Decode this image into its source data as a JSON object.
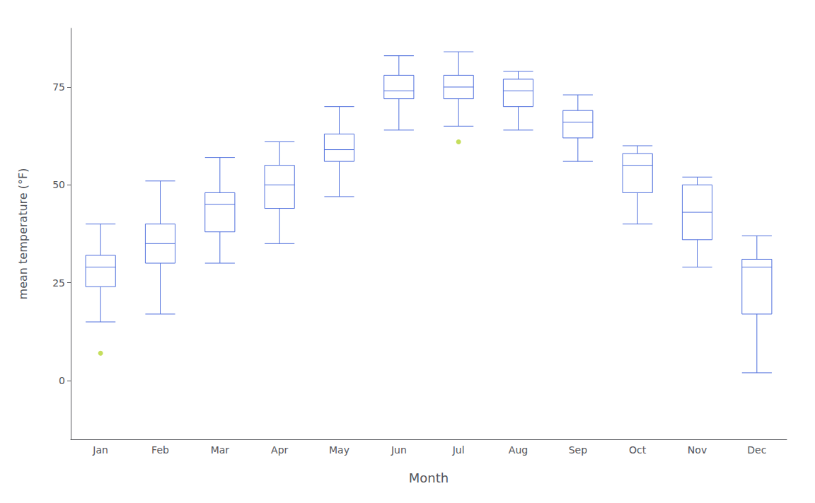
{
  "chart_data": {
    "type": "box",
    "xlabel": "Month",
    "ylabel": "mean temperature (°F)",
    "categories": [
      "Jan",
      "Feb",
      "Mar",
      "Apr",
      "May",
      "Jun",
      "Jul",
      "Aug",
      "Sep",
      "Oct",
      "Nov",
      "Dec"
    ],
    "values": [
      [
        15,
        24,
        29,
        32,
        40
      ],
      [
        17,
        30,
        35,
        40,
        51
      ],
      [
        30,
        38,
        45,
        48,
        57
      ],
      [
        35,
        44,
        50,
        55,
        61
      ],
      [
        47,
        56,
        59,
        63,
        70
      ],
      [
        64,
        72,
        74,
        78,
        83
      ],
      [
        65,
        72,
        75,
        78,
        84
      ],
      [
        64,
        70,
        74,
        77,
        79
      ],
      [
        56,
        62,
        66,
        69,
        73
      ],
      [
        40,
        48,
        55,
        58,
        60
      ],
      [
        29,
        36,
        43,
        50,
        52
      ],
      [
        2,
        17,
        29,
        31,
        37
      ]
    ],
    "fliers": [
      [
        7
      ],
      [],
      [],
      [],
      [],
      [],
      [
        61
      ],
      [],
      [],
      [],
      [],
      []
    ],
    "ylim": [
      -15,
      90
    ],
    "yticks": [
      0,
      25,
      50,
      75
    ],
    "grid": false
  }
}
